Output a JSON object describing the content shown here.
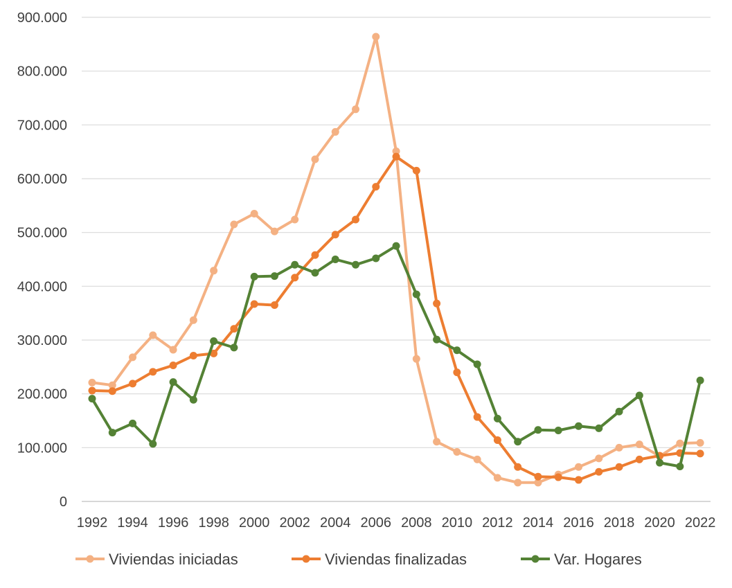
{
  "chart_data": {
    "type": "line",
    "title": "",
    "xlabel": "",
    "ylabel": "",
    "x": [
      1992,
      1993,
      1994,
      1995,
      1996,
      1997,
      1998,
      1999,
      2000,
      2001,
      2002,
      2003,
      2004,
      2005,
      2006,
      2007,
      2008,
      2009,
      2010,
      2011,
      2012,
      2013,
      2014,
      2015,
      2016,
      2017,
      2018,
      2019,
      2020,
      2021,
      2022
    ],
    "x_tick_labels": [
      "1992",
      "1994",
      "1996",
      "1998",
      "2000",
      "2002",
      "2004",
      "2006",
      "2008",
      "2010",
      "2012",
      "2014",
      "2016",
      "2018",
      "2020",
      "2022"
    ],
    "ylim": [
      0,
      900000
    ],
    "y_ticks": [
      0,
      100000,
      200000,
      300000,
      400000,
      500000,
      600000,
      700000,
      800000,
      900000
    ],
    "y_tick_labels": [
      "0",
      "100.000",
      "200.000",
      "300.000",
      "400.000",
      "500.000",
      "600.000",
      "700.000",
      "800.000",
      "900.000"
    ],
    "grid": "horizontal",
    "legend_position": "bottom",
    "series": [
      {
        "name": "Viviendas iniciadas",
        "color": "#F4B183",
        "values": [
          221000,
          216000,
          268000,
          309000,
          282000,
          337000,
          429000,
          515000,
          535000,
          502000,
          524000,
          636000,
          687000,
          729000,
          864000,
          651000,
          265000,
          111000,
          92000,
          78000,
          44000,
          35000,
          35000,
          50000,
          64000,
          80000,
          100000,
          106000,
          84000,
          108000,
          109000
        ]
      },
      {
        "name": "Viviendas finalizadas",
        "color": "#ED7D31",
        "values": [
          206000,
          205000,
          219000,
          241000,
          253000,
          271000,
          275000,
          321000,
          367000,
          365000,
          416000,
          458000,
          496000,
          524000,
          585000,
          641000,
          615000,
          368000,
          240000,
          157000,
          114000,
          64000,
          46000,
          45000,
          40000,
          55000,
          64000,
          78000,
          85000,
          90000,
          89000
        ]
      },
      {
        "name": "Var. Hogares",
        "color": "#548235",
        "values": [
          191000,
          128000,
          145000,
          107000,
          222000,
          189000,
          298000,
          286000,
          418000,
          419000,
          440000,
          425000,
          450000,
          440000,
          452000,
          475000,
          385000,
          301000,
          281000,
          255000,
          154000,
          111000,
          133000,
          132000,
          140000,
          136000,
          167000,
          197000,
          72000,
          65000,
          225000
        ]
      }
    ]
  }
}
